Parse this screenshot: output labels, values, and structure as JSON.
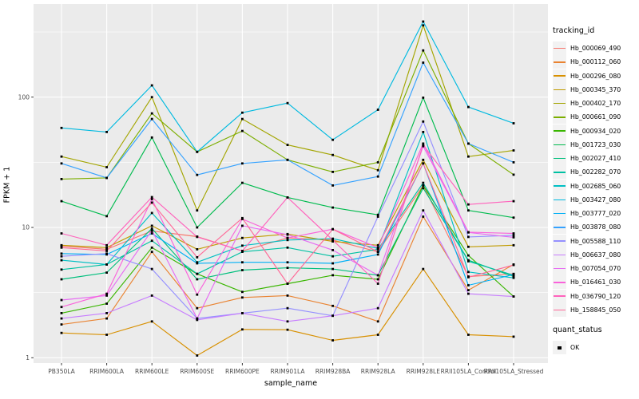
{
  "figure": {
    "background": "#FFFFFF",
    "panel_background": "#EBEBEB",
    "gridline_color": "#FFFFFF",
    "legend_key_background": "#F2F2F2",
    "axis_text_color": "#4D4D4D",
    "tick_mark_color": "#333333",
    "point_color": "#000000"
  },
  "chart_data": {
    "type": "line",
    "title": "",
    "xlabel": "sample_name",
    "ylabel": "FPKM + 1",
    "y_scale": "log10",
    "y_ticks": [
      "1",
      "10",
      "100"
    ],
    "y_minor_gridlines": [
      3.1623,
      31.623,
      316.23
    ],
    "ylim": [
      0.9,
      500
    ],
    "grid": true,
    "legend_position": "right",
    "legend_title": "tracking_id",
    "quant_legend": {
      "title": "quant_status",
      "items": [
        "OK"
      ]
    },
    "categories": [
      "PB350LA",
      "RRIM600LA",
      "RRIM600LE",
      "RRIM600SE",
      "RRIM600PE",
      "RRIM901LA",
      "RRIM928BA",
      "RRIM928LA",
      "RRIM928LE",
      "RRII105LA_Control",
      "RRII105LA_Stressed"
    ],
    "series": [
      {
        "name": "Hb_000069_490",
        "color": "#F8766D",
        "values": [
          7.2,
          6.8,
          9.4,
          8.5,
          6.6,
          8.3,
          8.0,
          6.5,
          21,
          4.2,
          4.4
        ]
      },
      {
        "name": "Hb_000112_060",
        "color": "#EA8331",
        "values": [
          1.8,
          2.0,
          6.5,
          2.4,
          2.9,
          3.0,
          2.5,
          1.9,
          12.1,
          3.3,
          5.2
        ]
      },
      {
        "name": "Hb_000296_080",
        "color": "#D89000",
        "values": [
          1.55,
          1.5,
          1.9,
          1.04,
          1.65,
          1.64,
          1.36,
          1.5,
          4.8,
          1.5,
          1.45
        ]
      },
      {
        "name": "Hb_000345_370",
        "color": "#C09B00",
        "values": [
          7.3,
          7.0,
          10.3,
          6.8,
          8.3,
          8.9,
          7.8,
          7.3,
          33,
          7.1,
          7.3
        ]
      },
      {
        "name": "Hb_000402_170",
        "color": "#A3A500",
        "values": [
          35,
          29,
          100,
          13.5,
          68,
          43,
          36,
          27.5,
          355,
          35,
          39
        ]
      },
      {
        "name": "Hb_000661_090",
        "color": "#7CAE00",
        "values": [
          23.5,
          24,
          75,
          38,
          55,
          33,
          26.7,
          31.6,
          228,
          44,
          25.4
        ]
      },
      {
        "name": "Hb_000934_020",
        "color": "#39B600",
        "values": [
          2.2,
          2.6,
          7.0,
          4.4,
          3.2,
          3.7,
          4.3,
          4.0,
          21,
          6.1,
          2.95
        ]
      },
      {
        "name": "Hb_001723_030",
        "color": "#00BB4E",
        "values": [
          15.9,
          12.2,
          49,
          10.0,
          22,
          17,
          14.2,
          12.5,
          99,
          13.5,
          11.9
        ]
      },
      {
        "name": "Hb_002027_410",
        "color": "#00BF7D",
        "values": [
          4.0,
          4.5,
          9.8,
          4.0,
          4.7,
          4.9,
          4.8,
          4.3,
          20,
          5.6,
          4.2
        ]
      },
      {
        "name": "Hb_002282_070",
        "color": "#00C1A3",
        "values": [
          4.75,
          5.2,
          7.9,
          4.4,
          6.5,
          7.0,
          6.0,
          6.8,
          22,
          5.5,
          4.3
        ]
      },
      {
        "name": "Hb_002685_060",
        "color": "#00BFC4",
        "values": [
          5.6,
          5.2,
          12.9,
          5.4,
          7.25,
          8.0,
          8.2,
          6.9,
          54,
          4.55,
          4.1
        ]
      },
      {
        "name": "Hb_003427_080",
        "color": "#00BAE0",
        "values": [
          58,
          54,
          123,
          38,
          76,
          90,
          47,
          80,
          380,
          84,
          63
        ]
      },
      {
        "name": "Hb_003777_020",
        "color": "#00B0F6",
        "values": [
          6.3,
          6.2,
          9.0,
          5.3,
          5.4,
          5.4,
          5.3,
          6.2,
          31,
          3.6,
          4.35
        ]
      },
      {
        "name": "Hb_003878_080",
        "color": "#35A2FF",
        "values": [
          31,
          24,
          68,
          25.3,
          31,
          33,
          21,
          24.6,
          184,
          44,
          31.6
        ]
      },
      {
        "name": "Hb_005588_110",
        "color": "#9590FF",
        "values": [
          6.0,
          6.3,
          4.8,
          2.0,
          2.2,
          2.4,
          2.1,
          12.1,
          65,
          8.45,
          8.7
        ]
      },
      {
        "name": "Hb_006637_080",
        "color": "#C77CFF",
        "values": [
          2.0,
          2.2,
          3.0,
          1.95,
          2.2,
          1.9,
          2.1,
          2.4,
          13.5,
          3.1,
          2.95
        ]
      },
      {
        "name": "Hb_007054_070",
        "color": "#E76BF3",
        "values": [
          2.77,
          3.0,
          9.5,
          2.0,
          10.3,
          8.8,
          6.7,
          4.3,
          42,
          9.15,
          8.4
        ]
      },
      {
        "name": "Hb_016461_030",
        "color": "#FA62DB",
        "values": [
          2.45,
          3.1,
          16.5,
          3.05,
          11.6,
          8.3,
          9.7,
          7.0,
          44,
          9.2,
          9.0
        ]
      },
      {
        "name": "Hb_036790_120",
        "color": "#FF62BC",
        "values": [
          9.0,
          7.3,
          17.1,
          8.45,
          6.6,
          17.0,
          8.0,
          3.7,
          43,
          15.0,
          15.9
        ]
      },
      {
        "name": "Hb_158845_050",
        "color": "#FF6A98",
        "values": [
          7.0,
          6.6,
          15.5,
          5.9,
          11.8,
          3.7,
          9.7,
          6.5,
          31,
          4.15,
          5.15
        ]
      }
    ]
  }
}
